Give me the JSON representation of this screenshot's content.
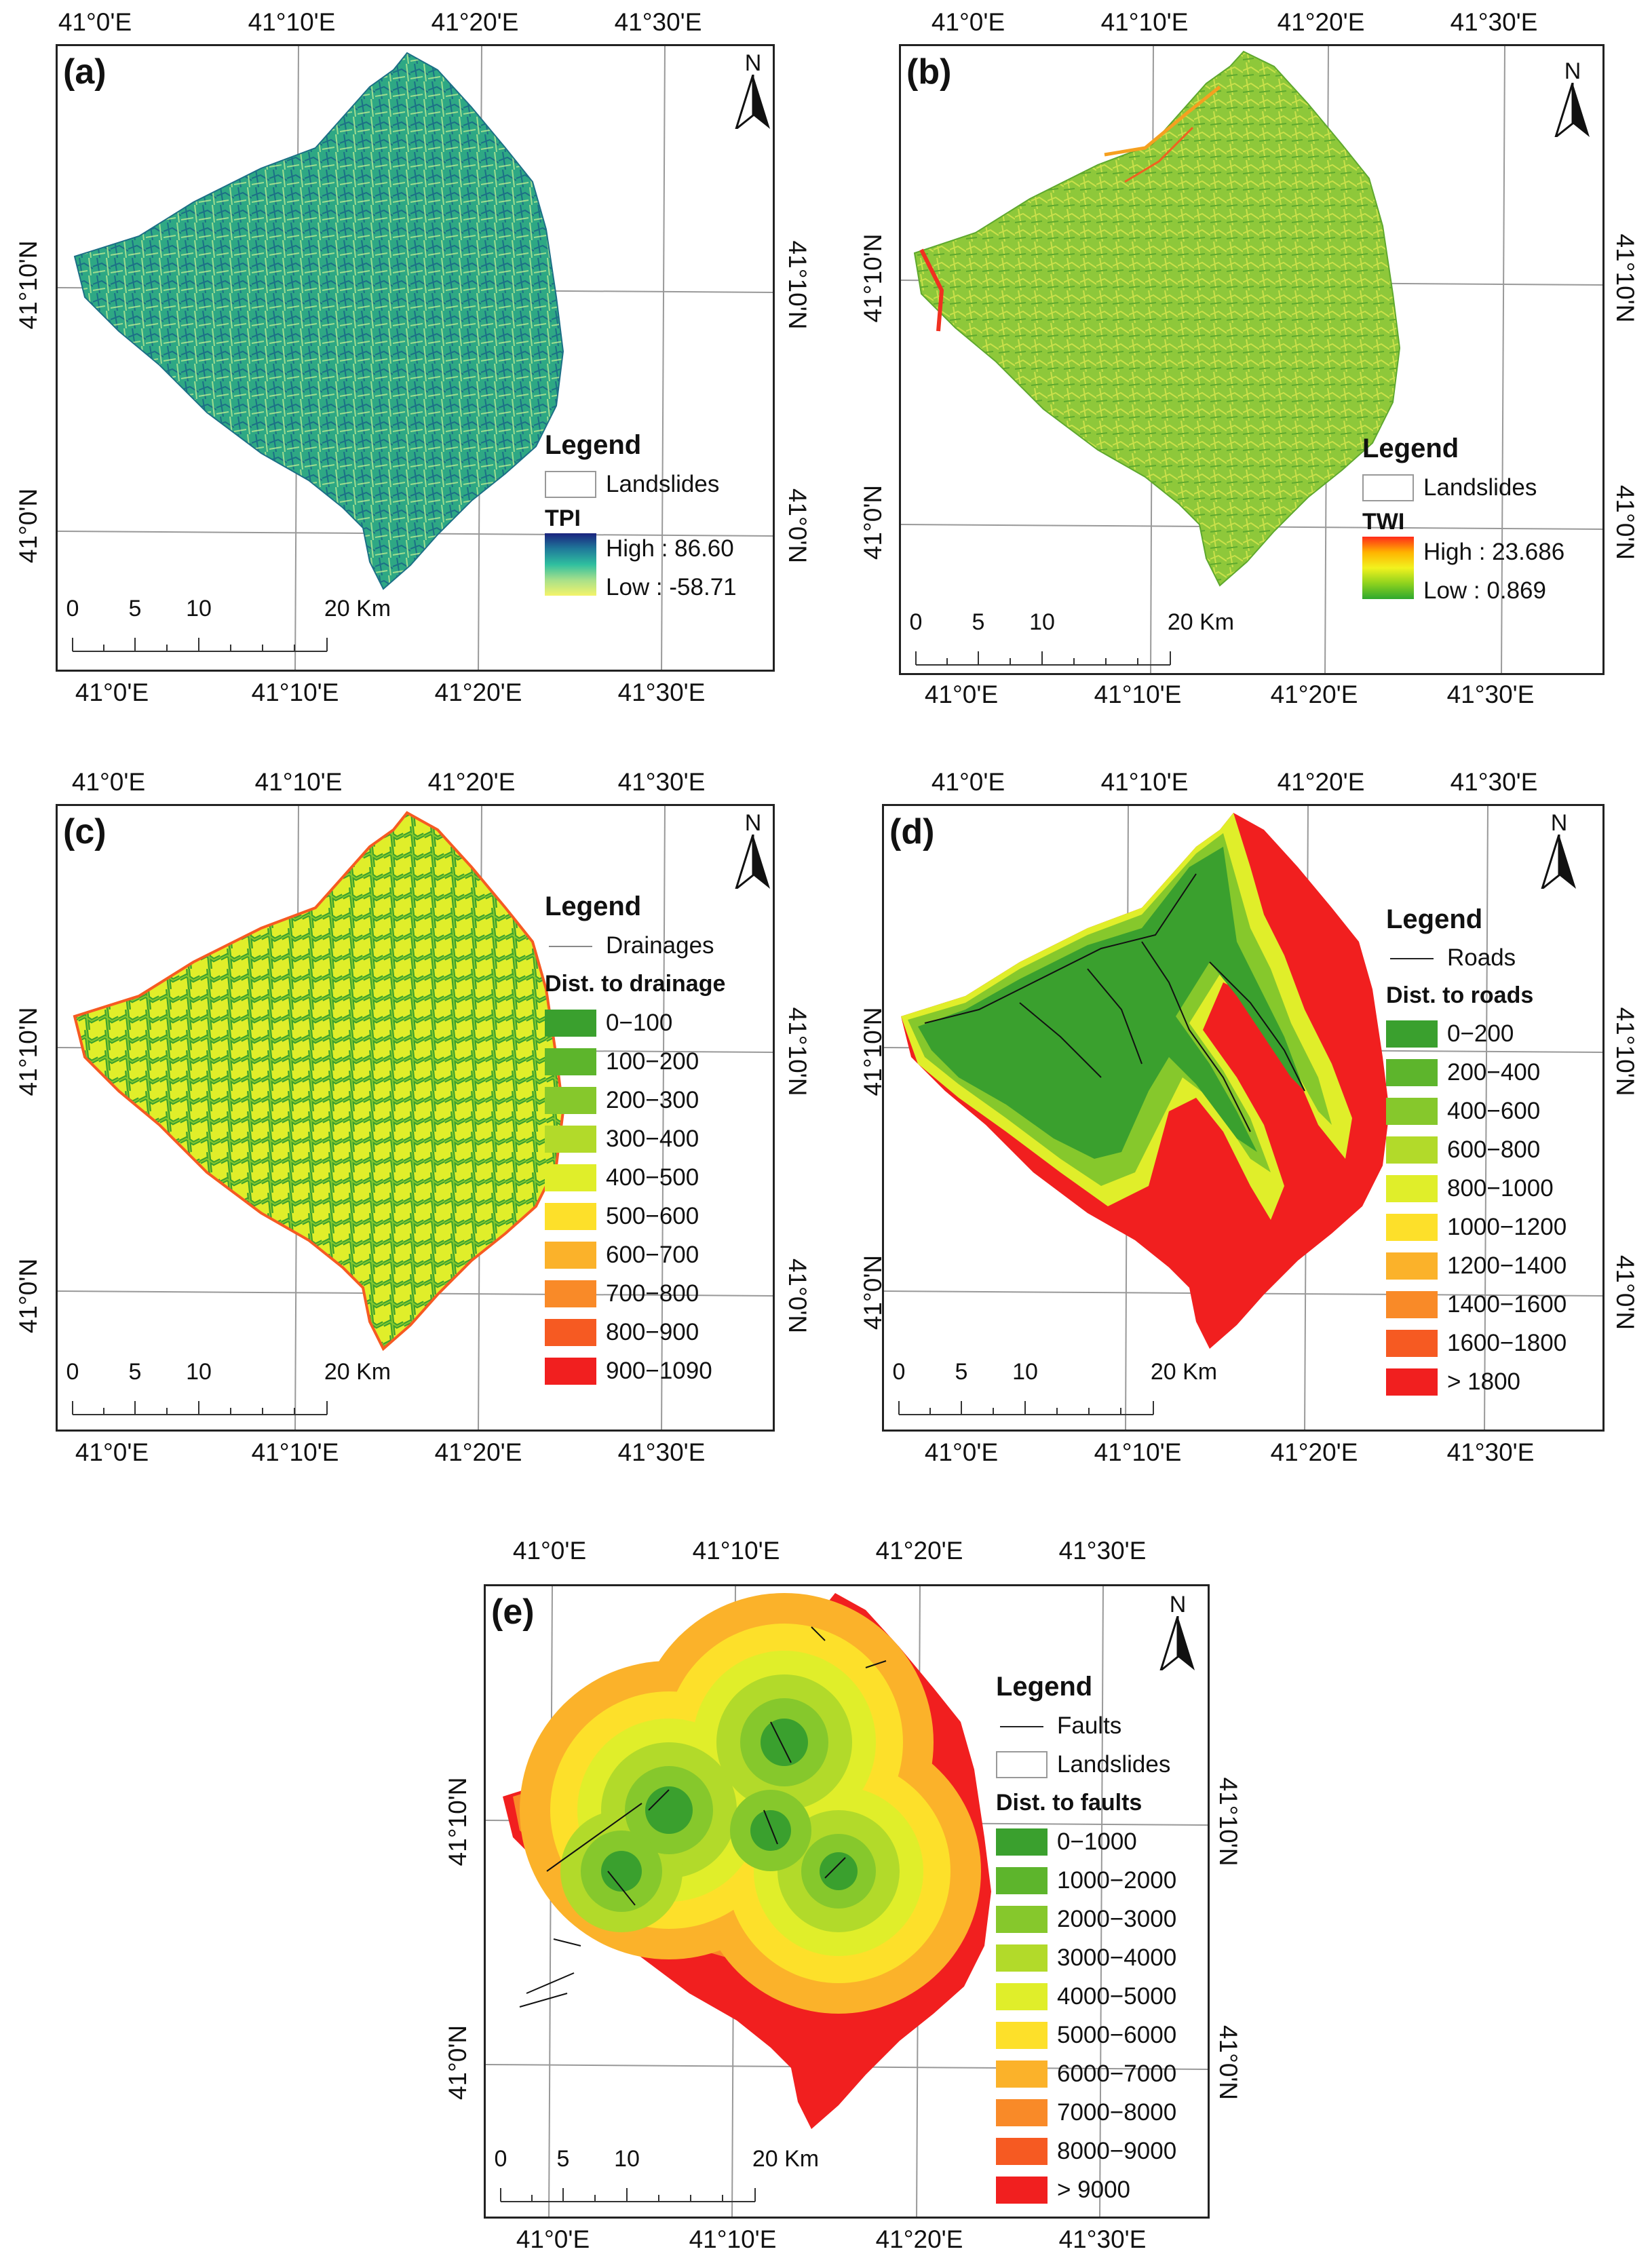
{
  "coords": {
    "lon": [
      "41°0'E",
      "41°10'E",
      "41°20'E",
      "41°30'E"
    ],
    "lat": [
      "41°10'N",
      "41°0'N"
    ]
  },
  "north_label": "N",
  "scalebar": {
    "ticks": [
      "0",
      "5",
      "10",
      "20 Km"
    ]
  },
  "panels": {
    "a": {
      "label": "(a)",
      "legend_title": "Legend",
      "landslides": "Landslides",
      "layer_name": "TPI",
      "high": "High : 86.60",
      "low": "Low : -58.71",
      "ramp_colors": [
        "#1a237e",
        "#1f7a9a",
        "#2fbf9f",
        "#a8e08a",
        "#f4f46a"
      ]
    },
    "b": {
      "label": "(b)",
      "legend_title": "Legend",
      "landslides": "Landslides",
      "layer_name": "TWI",
      "high": "High : 23.686",
      "low": "Low : 0.869",
      "ramp_colors": [
        "#ff2a1a",
        "#ffb300",
        "#f2f21e",
        "#8ed21e",
        "#2ea82e"
      ]
    },
    "c": {
      "label": "(c)",
      "legend_title": "Legend",
      "line_item": "Drainages",
      "class_title": "Dist. to drainage",
      "classes": [
        {
          "label": "0−100",
          "color": "#3aa02e"
        },
        {
          "label": "100−200",
          "color": "#5db52c"
        },
        {
          "label": "200−300",
          "color": "#86c82c"
        },
        {
          "label": "300−400",
          "color": "#b2da2a"
        },
        {
          "label": "400−500",
          "color": "#e0ee2a"
        },
        {
          "label": "500−600",
          "color": "#fde02a"
        },
        {
          "label": "600−700",
          "color": "#fbb22a"
        },
        {
          "label": "700−800",
          "color": "#f98a28"
        },
        {
          "label": "800−900",
          "color": "#f65a22"
        },
        {
          "label": "900−1090",
          "color": "#f11f1f"
        }
      ]
    },
    "d": {
      "label": "(d)",
      "legend_title": "Legend",
      "line_item": "Roads",
      "class_title": "Dist. to roads",
      "classes": [
        {
          "label": "0−200",
          "color": "#3aa02e"
        },
        {
          "label": "200−400",
          "color": "#5db52c"
        },
        {
          "label": "400−600",
          "color": "#86c82c"
        },
        {
          "label": "600−800",
          "color": "#b2da2a"
        },
        {
          "label": " 800−1000",
          "color": "#e0ee2a"
        },
        {
          "label": "1000−1200",
          "color": "#fde02a"
        },
        {
          "label": "1200−1400",
          "color": "#fbb22a"
        },
        {
          "label": "1400−1600",
          "color": "#f98a28"
        },
        {
          "label": "1600−1800",
          "color": "#f65a22"
        },
        {
          "label": "> 1800",
          "color": "#f11f1f"
        }
      ]
    },
    "e": {
      "label": "(e)",
      "legend_title": "Legend",
      "line_item": "Faults",
      "landslides": "Landslides",
      "class_title": "Dist. to faults",
      "classes": [
        {
          "label": "0−1000",
          "color": "#3aa02e"
        },
        {
          "label": "1000−2000",
          "color": "#5db52c"
        },
        {
          "label": "2000−3000",
          "color": "#86c82c"
        },
        {
          "label": "3000−4000",
          "color": "#b2da2a"
        },
        {
          "label": "4000−5000",
          "color": "#e0ee2a"
        },
        {
          "label": "5000−6000",
          "color": "#fde02a"
        },
        {
          "label": "6000−7000",
          "color": "#fbb22a"
        },
        {
          "label": "7000−8000",
          "color": "#f98a28"
        },
        {
          "label": "8000−9000",
          "color": "#f65a22"
        },
        {
          "label": "> 9000",
          "color": "#f11f1f"
        }
      ]
    }
  }
}
